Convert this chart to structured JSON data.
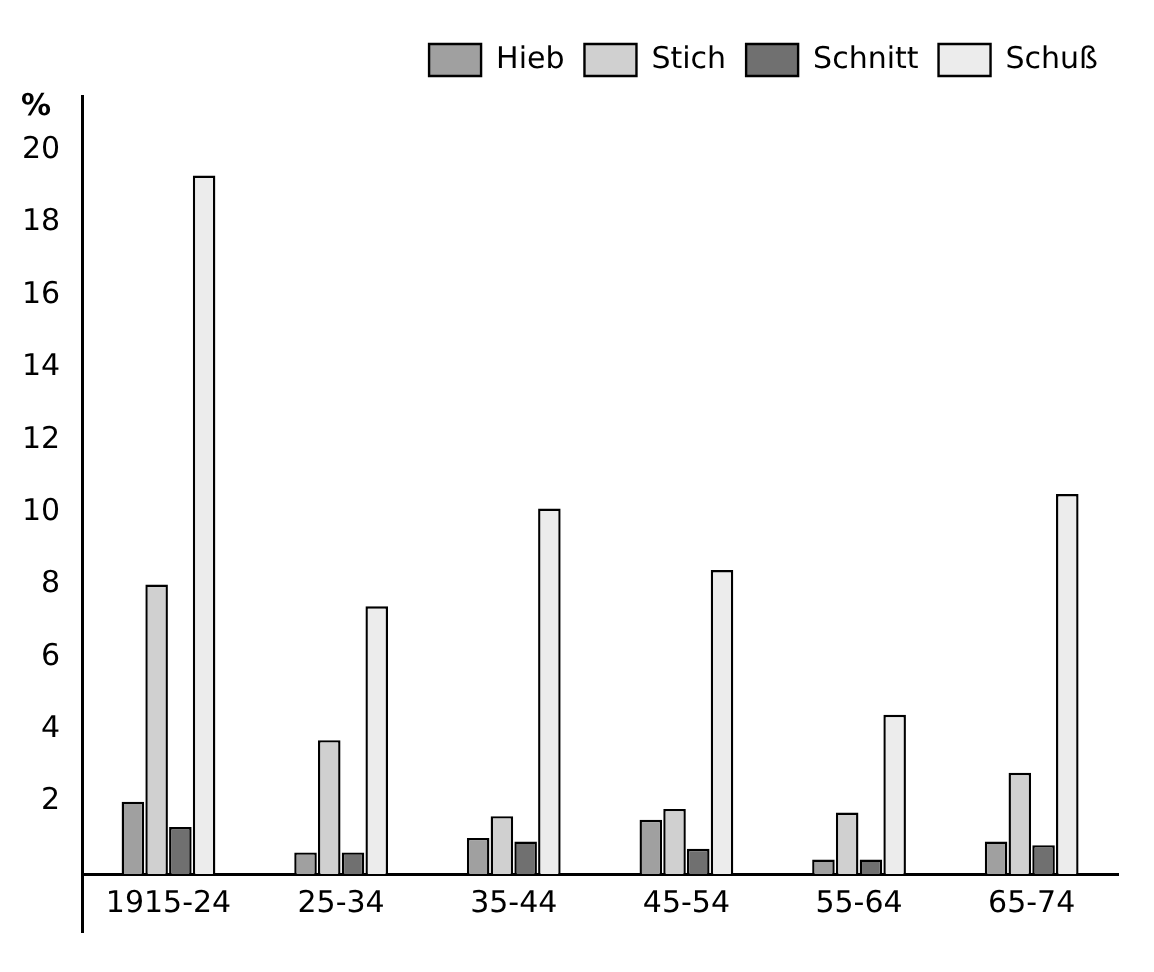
{
  "chart_data": {
    "type": "bar",
    "ylabel": "%",
    "categories": [
      "1915-24",
      "25-34",
      "35-44",
      "45-54",
      "55-64",
      "65-74"
    ],
    "series": [
      {
        "name": "Hieb",
        "color": "#a0a0a0",
        "values": [
          2.0,
          0.6,
          1.0,
          1.5,
          0.4,
          0.9
        ]
      },
      {
        "name": "Stich",
        "color": "#d0d0d0",
        "values": [
          8.0,
          3.7,
          1.6,
          1.8,
          1.7,
          2.8
        ]
      },
      {
        "name": "Schnitt",
        "color": "#707070",
        "values": [
          1.3,
          0.6,
          0.9,
          0.7,
          0.4,
          0.8
        ]
      },
      {
        "name": "Schuß",
        "color": "#ececec",
        "values": [
          19.3,
          7.4,
          10.1,
          8.4,
          4.4,
          10.5
        ]
      }
    ],
    "ylim": [
      -1.6,
      21.5
    ],
    "yticks": [
      2,
      4,
      6,
      8,
      10,
      12,
      14,
      16,
      18,
      20
    ],
    "grid": false,
    "legend": "top"
  }
}
